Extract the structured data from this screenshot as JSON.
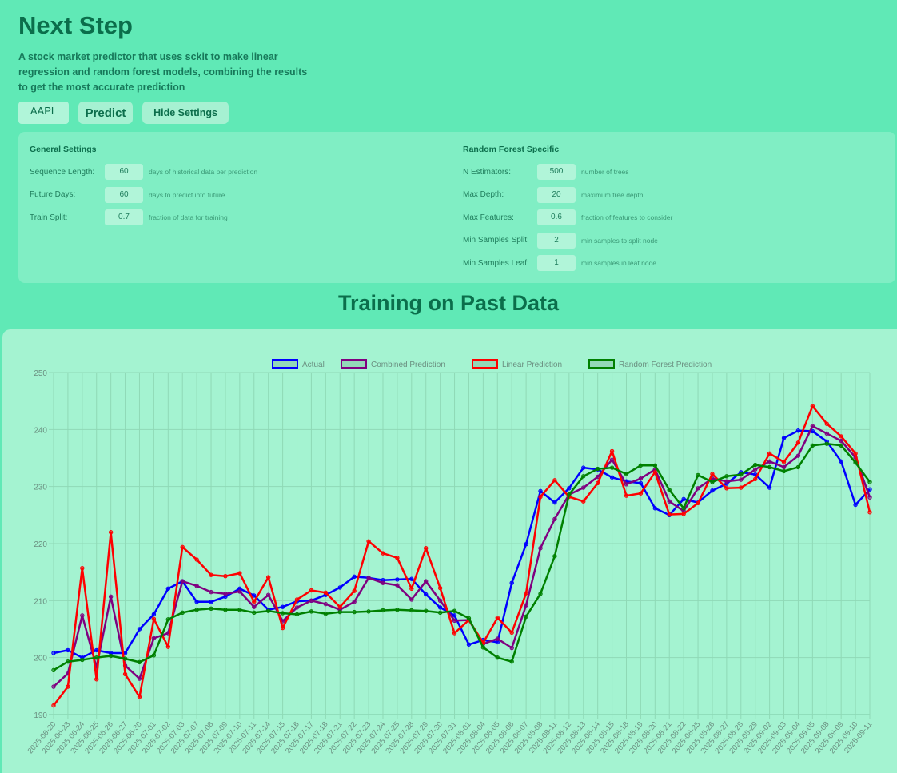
{
  "header": {
    "title": "Next Step",
    "description": "A stock market predictor that uses sckit to make linear regression and random forest models, combining the results to get the most accurate prediction"
  },
  "controls": {
    "ticker_value": "AAPL",
    "predict_label": "Predict",
    "hide_settings_label": "Hide Settings"
  },
  "settings": {
    "general": {
      "title": "General Settings",
      "rows": [
        {
          "label": "Sequence Length:",
          "value": "60",
          "hint": "days of historical data per prediction"
        },
        {
          "label": "Future Days:",
          "value": "60",
          "hint": "days to predict into future"
        },
        {
          "label": "Train Split:",
          "value": "0.7",
          "hint": "fraction of data for training"
        }
      ]
    },
    "random_forest": {
      "title": "Random Forest Specific",
      "rows": [
        {
          "label": "N Estimators:",
          "value": "500",
          "hint": "number of trees"
        },
        {
          "label": "Max Depth:",
          "value": "20",
          "hint": "maximum tree depth"
        },
        {
          "label": "Max Features:",
          "value": "0.6",
          "hint": "fraction of features to consider"
        },
        {
          "label": "Min Samples Split:",
          "value": "2",
          "hint": "min samples to split node"
        },
        {
          "label": "Min Samples Leaf:",
          "value": "1",
          "hint": "min samples in leaf node"
        }
      ]
    }
  },
  "section_title": "Training on Past Data",
  "chart_data": {
    "type": "line",
    "title": "",
    "xlabel": "",
    "ylabel": "",
    "ylim": [
      190,
      250
    ],
    "yticks": [
      190,
      200,
      210,
      220,
      230,
      240,
      250
    ],
    "grid": true,
    "legend_position": "top-center",
    "x": [
      "2025-06-20",
      "2025-06-23",
      "2025-06-24",
      "2025-06-25",
      "2025-06-26",
      "2025-06-27",
      "2025-06-30",
      "2025-07-01",
      "2025-07-02",
      "2025-07-03",
      "2025-07-07",
      "2025-07-08",
      "2025-07-09",
      "2025-07-10",
      "2025-07-11",
      "2025-07-14",
      "2025-07-15",
      "2025-07-16",
      "2025-07-17",
      "2025-07-18",
      "2025-07-21",
      "2025-07-22",
      "2025-07-23",
      "2025-07-24",
      "2025-07-25",
      "2025-07-28",
      "2025-07-29",
      "2025-07-30",
      "2025-07-31",
      "2025-08-01",
      "2025-08-04",
      "2025-08-05",
      "2025-08-06",
      "2025-08-07",
      "2025-08-08",
      "2025-08-11",
      "2025-08-12",
      "2025-08-13",
      "2025-08-14",
      "2025-08-15",
      "2025-08-18",
      "2025-08-19",
      "2025-08-20",
      "2025-08-21",
      "2025-08-22",
      "2025-08-25",
      "2025-08-26",
      "2025-08-27",
      "2025-08-28",
      "2025-08-29",
      "2025-09-02",
      "2025-09-03",
      "2025-09-04",
      "2025-09-05",
      "2025-09-08",
      "2025-09-09",
      "2025-09-10",
      "2025-09-11"
    ],
    "series": [
      {
        "name": "Actual",
        "color": "#0000ff",
        "values": [
          200.8,
          201.3,
          200.0,
          201.3,
          200.8,
          200.8,
          205.0,
          207.6,
          212.1,
          213.4,
          209.8,
          209.8,
          210.7,
          212.1,
          210.9,
          208.4,
          208.9,
          209.9,
          210.0,
          211.0,
          212.3,
          214.2,
          214.0,
          213.6,
          213.7,
          213.8,
          211.1,
          208.8,
          207.4,
          202.3,
          203.1,
          202.7,
          213.1,
          219.9,
          229.2,
          227.2,
          229.7,
          233.3,
          233.0,
          231.6,
          230.9,
          230.6,
          226.2,
          225.0,
          227.8,
          227.2,
          229.3,
          230.5,
          232.5,
          232.1,
          229.8,
          238.5,
          239.8,
          239.7,
          237.9,
          234.4,
          226.8,
          229.5
        ]
      },
      {
        "name": "Combined Prediction",
        "color": "#800080",
        "values": [
          194.9,
          197.2,
          207.4,
          198.3,
          210.7,
          198.6,
          196.3,
          203.4,
          204.3,
          213.4,
          212.6,
          211.5,
          211.2,
          211.6,
          208.9,
          211.0,
          206.4,
          208.8,
          210.0,
          209.4,
          208.4,
          209.8,
          214.0,
          213.1,
          212.7,
          210.2,
          213.4,
          210.0,
          206.5,
          206.6,
          202.4,
          203.3,
          201.7,
          209.2,
          219.2,
          224.3,
          228.6,
          229.8,
          231.7,
          234.7,
          230.4,
          231.4,
          233.0,
          227.4,
          225.7,
          229.7,
          231.4,
          230.9,
          231.2,
          233.0,
          234.4,
          233.4,
          235.4,
          240.6,
          239.3,
          238.0,
          235.1,
          228.1
        ]
      },
      {
        "name": "Linear Prediction",
        "color": "#ff0000",
        "values": [
          191.6,
          194.9,
          215.7,
          196.2,
          222.0,
          197.1,
          193.1,
          206.8,
          201.9,
          219.4,
          217.2,
          214.5,
          214.3,
          214.8,
          209.8,
          214.1,
          205.2,
          210.2,
          211.8,
          211.4,
          208.9,
          211.7,
          220.4,
          218.3,
          217.5,
          212.1,
          219.2,
          212.2,
          204.3,
          206.6,
          202.6,
          207.0,
          204.4,
          211.3,
          228.2,
          231.1,
          228.2,
          227.4,
          230.6,
          236.2,
          228.4,
          228.8,
          232.5,
          225.1,
          225.2,
          227.1,
          232.2,
          229.7,
          229.8,
          231.3,
          235.8,
          234.3,
          237.7,
          244.1,
          241.0,
          238.8,
          235.8,
          225.5
        ]
      },
      {
        "name": "Random Forest Prediction",
        "color": "#008000",
        "values": [
          197.8,
          199.3,
          199.6,
          200.0,
          200.3,
          199.8,
          199.2,
          200.4,
          206.7,
          207.9,
          208.4,
          208.6,
          208.4,
          208.4,
          207.9,
          208.2,
          207.8,
          207.6,
          208.1,
          207.7,
          208.0,
          208.0,
          208.1,
          208.3,
          208.4,
          208.3,
          208.2,
          207.9,
          208.2,
          206.9,
          201.8,
          200.0,
          199.3,
          207.2,
          211.2,
          217.8,
          228.6,
          231.8,
          233.1,
          233.3,
          232.2,
          233.7,
          233.7,
          229.4,
          226.2,
          232.0,
          230.8,
          231.8,
          232.1,
          233.8,
          233.4,
          232.7,
          233.4,
          237.2,
          237.5,
          237.2,
          234.2,
          230.8
        ]
      }
    ]
  }
}
